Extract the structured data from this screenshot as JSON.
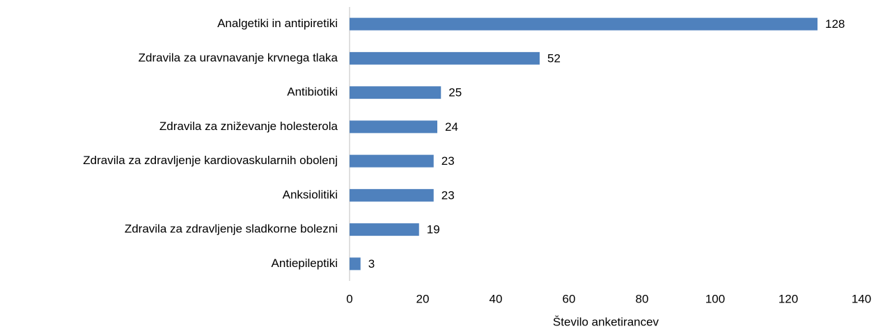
{
  "chart_data": {
    "type": "bar",
    "orientation": "horizontal",
    "x_label": "Število anketirancev",
    "categories": [
      "Analgetiki in antipiretiki",
      "Zdravila za uravnavanje krvnega tlaka",
      "Antibiotiki",
      "Zdravila za zniževanje holesterola",
      "Zdravila za zdravljenje kardiovaskularnih obolenj",
      "Anksiolitiki",
      "Zdravila za zdravljenje sladkorne bolezni",
      "Antiepileptiki"
    ],
    "values": [
      128,
      52,
      25,
      24,
      23,
      23,
      19,
      3
    ],
    "color": "#4f81bd",
    "xlim": [
      0,
      140
    ],
    "xticks": [
      0,
      20,
      40,
      60,
      80,
      100,
      120,
      140
    ],
    "grid": false
  }
}
